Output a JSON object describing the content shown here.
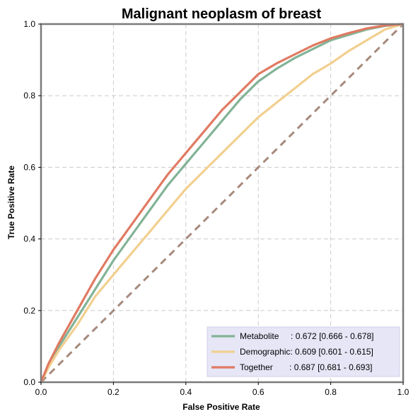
{
  "chart_data": {
    "type": "line",
    "title": "Malignant neoplasm of breast",
    "xlabel": "False Positive Rate",
    "ylabel": "True Positive Rate",
    "xlim": [
      0,
      1
    ],
    "ylim": [
      0,
      1
    ],
    "xticks": [
      "0.0",
      "0.2",
      "0.4",
      "0.6",
      "0.8",
      "1.0"
    ],
    "yticks": [
      "0.0",
      "0.2",
      "0.4",
      "0.6",
      "0.8",
      "1.0"
    ],
    "grid": true,
    "legend_position": "bottom-right",
    "chance_line": {
      "x": [
        0,
        1
      ],
      "y": [
        0,
        1
      ],
      "color": "#a68a7c",
      "style": "dashed"
    },
    "series": [
      {
        "name": "Metabolite",
        "label": "Metabolite     : 0.672 [0.666 - 0.678]",
        "color": "#82b396",
        "x": [
          0,
          0.02,
          0.05,
          0.1,
          0.15,
          0.2,
          0.25,
          0.3,
          0.35,
          0.4,
          0.45,
          0.5,
          0.55,
          0.6,
          0.65,
          0.7,
          0.75,
          0.8,
          0.85,
          0.9,
          0.95,
          1.0
        ],
        "y": [
          0,
          0.04,
          0.1,
          0.18,
          0.26,
          0.34,
          0.41,
          0.48,
          0.55,
          0.61,
          0.67,
          0.73,
          0.79,
          0.84,
          0.875,
          0.905,
          0.93,
          0.955,
          0.97,
          0.985,
          0.995,
          1.0
        ]
      },
      {
        "name": "Demographic",
        "label": "Demographic: 0.609 [0.601 - 0.615]",
        "color": "#f2cf8f",
        "x": [
          0,
          0.02,
          0.05,
          0.1,
          0.15,
          0.2,
          0.25,
          0.3,
          0.35,
          0.4,
          0.45,
          0.5,
          0.55,
          0.6,
          0.65,
          0.7,
          0.75,
          0.8,
          0.85,
          0.9,
          0.95,
          1.0
        ],
        "y": [
          0,
          0.04,
          0.09,
          0.16,
          0.24,
          0.3,
          0.36,
          0.42,
          0.48,
          0.54,
          0.59,
          0.64,
          0.69,
          0.74,
          0.78,
          0.82,
          0.86,
          0.89,
          0.925,
          0.955,
          0.985,
          1.0
        ]
      },
      {
        "name": "Together",
        "label": "Together       : 0.687 [0.681 - 0.693]",
        "color": "#e07a62",
        "x": [
          0,
          0.02,
          0.05,
          0.1,
          0.15,
          0.2,
          0.25,
          0.3,
          0.35,
          0.4,
          0.45,
          0.5,
          0.55,
          0.6,
          0.65,
          0.7,
          0.75,
          0.8,
          0.85,
          0.9,
          0.95,
          1.0
        ],
        "y": [
          0,
          0.05,
          0.11,
          0.2,
          0.29,
          0.37,
          0.44,
          0.51,
          0.58,
          0.64,
          0.7,
          0.76,
          0.81,
          0.86,
          0.89,
          0.915,
          0.94,
          0.96,
          0.975,
          0.988,
          0.996,
          1.0
        ]
      }
    ]
  }
}
